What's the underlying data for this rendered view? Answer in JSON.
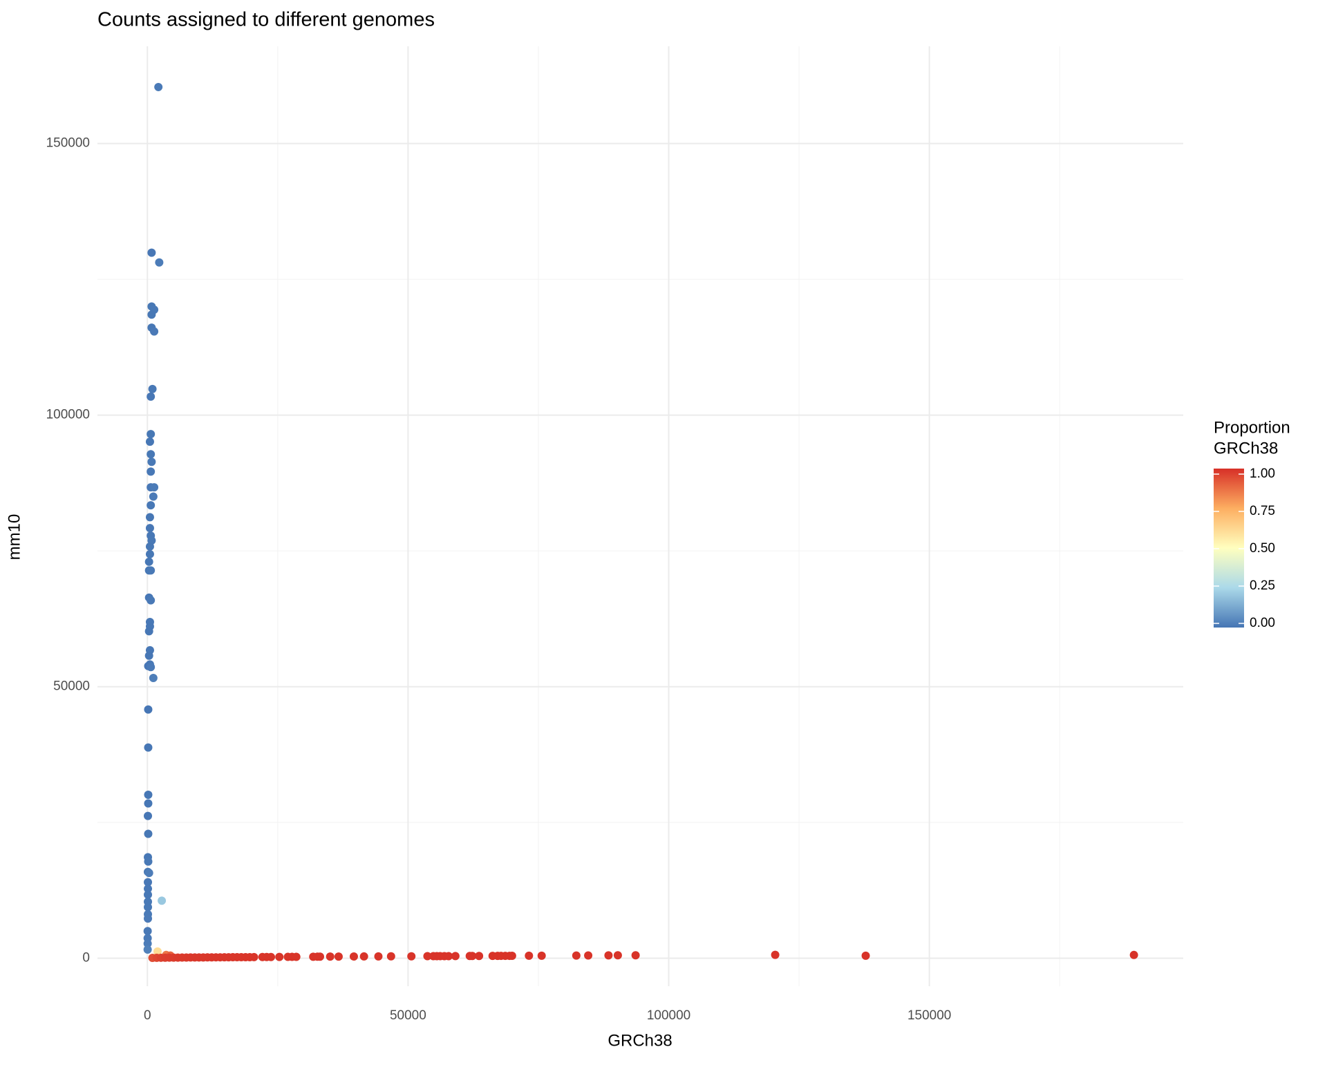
{
  "chart_data": {
    "type": "scatter",
    "title": "Counts assigned to different genomes",
    "x_label": "GRCh38",
    "y_label": "mm10",
    "legend_title": [
      "Proportion",
      "GRCh38"
    ],
    "x": [
      2110,
      810,
      2270,
      810,
      1300,
      810,
      810,
      1300,
      970,
      650,
      650,
      490,
      650,
      810,
      650,
      650,
      1300,
      1140,
      650,
      490,
      490,
      650,
      810,
      490,
      490,
      320,
      320,
      650,
      320,
      650,
      490,
      490,
      320,
      490,
      320,
      490,
      160,
      650,
      1140,
      160,
      160,
      160,
      160,
      100,
      160,
      100,
      160,
      100,
      320,
      100,
      100,
      100,
      100,
      100,
      100,
      100,
      50,
      50,
      50,
      50,
      2760,
      1950,
      3600,
      4400,
      970,
      1790,
      2600,
      3410,
      4220,
      5030,
      5840,
      6650,
      7470,
      8280,
      9090,
      9900,
      10710,
      11520,
      12330,
      13150,
      13960,
      14770,
      15580,
      16390,
      17200,
      18010,
      18830,
      19640,
      20450,
      22070,
      22880,
      23700,
      25320,
      26950,
      27750,
      28560,
      31810,
      32620,
      33110,
      35060,
      36680,
      39600,
      41550,
      44310,
      46740,
      50640,
      53720,
      54860,
      55510,
      56160,
      56970,
      57780,
      59080,
      61840,
      62320,
      63620,
      66220,
      67190,
      67840,
      68650,
      69460,
      69950,
      73190,
      75630,
      82280,
      84560,
      88450,
      90240,
      93650,
      120430,
      137790,
      189240
    ],
    "y": [
      160400,
      129900,
      128100,
      120000,
      119400,
      118500,
      116100,
      115400,
      104800,
      103400,
      96500,
      95100,
      92800,
      91400,
      89600,
      86700,
      86700,
      85000,
      83400,
      81200,
      79200,
      77800,
      76900,
      75800,
      74400,
      73000,
      71400,
      71400,
      66400,
      65900,
      61900,
      61100,
      60200,
      56700,
      55700,
      54100,
      53800,
      53600,
      51600,
      45800,
      38800,
      30100,
      28500,
      26200,
      22900,
      18600,
      17800,
      15900,
      15700,
      14000,
      12800,
      11700,
      10400,
      9400,
      8100,
      7300,
      5000,
      3700,
      2700,
      1600,
      10600,
      1250,
      600,
      500,
      60,
      80,
      90,
      100,
      110,
      120,
      120,
      130,
      130,
      140,
      140,
      150,
      150,
      160,
      160,
      170,
      170,
      180,
      180,
      190,
      190,
      200,
      200,
      200,
      210,
      220,
      220,
      230,
      240,
      250,
      250,
      260,
      280,
      290,
      290,
      300,
      310,
      320,
      330,
      340,
      350,
      360,
      380,
      380,
      380,
      390,
      390,
      390,
      400,
      410,
      410,
      420,
      430,
      430,
      440,
      440,
      440,
      450,
      460,
      470,
      500,
      510,
      530,
      540,
      550,
      620,
      470,
      600
    ],
    "xlim": [
      -9580,
      198700
    ],
    "ylim": [
      -5150,
      167900
    ],
    "xticks": [
      0,
      50000,
      100000,
      150000
    ],
    "yticks": [
      0,
      50000,
      100000,
      150000
    ],
    "x_minor_grid": [
      25000,
      75000,
      125000,
      175000
    ],
    "y_minor_grid": [
      25000,
      75000,
      125000
    ],
    "grid": true,
    "colorscale": [
      [
        0,
        "#4575b4"
      ],
      [
        0.25,
        "#abd9e9"
      ],
      [
        0.5,
        "#ffffbf"
      ],
      [
        0.75,
        "#fdae61"
      ],
      [
        1,
        "#d73027"
      ]
    ],
    "legend_ticks": [
      {
        "value": 0,
        "label": "0.00"
      },
      {
        "value": 0.25,
        "label": "0.25"
      },
      {
        "value": 0.5,
        "label": "0.50"
      },
      {
        "value": 0.75,
        "label": "0.75"
      },
      {
        "value": 1,
        "label": "1.00"
      }
    ],
    "legend_position": "right"
  }
}
